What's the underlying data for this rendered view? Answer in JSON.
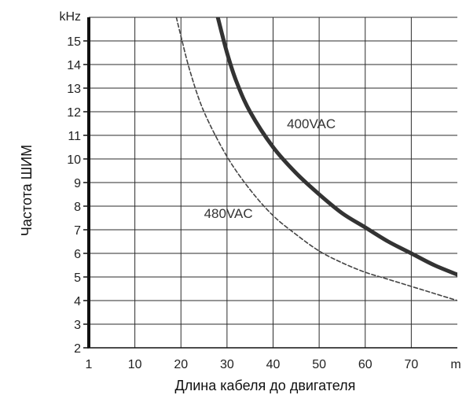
{
  "chart_data": {
    "type": "line",
    "title": "",
    "xlabel": "Длина кабеля до двигателя",
    "ylabel": "Частота ШИМ",
    "x_unit": "m",
    "y_unit": "kHz",
    "xlim": [
      1,
      80
    ],
    "ylim": [
      2,
      16
    ],
    "x_ticks": [
      1,
      10,
      20,
      30,
      40,
      50,
      60,
      70
    ],
    "y_ticks": [
      2,
      3,
      4,
      5,
      6,
      7,
      8,
      9,
      10,
      11,
      12,
      13,
      14,
      15
    ],
    "grid": true,
    "series": [
      {
        "name": "400VAC",
        "style": "solid",
        "color": "#333333",
        "x": [
          28,
          30,
          32,
          35,
          40,
          45,
          50,
          55,
          60,
          65,
          70,
          75,
          80
        ],
        "y": [
          16,
          14.5,
          13.3,
          12,
          10.5,
          9.4,
          8.5,
          7.7,
          7.1,
          6.5,
          6.0,
          5.5,
          5.1
        ]
      },
      {
        "name": "480VAC",
        "style": "dashed",
        "color": "#444444",
        "x": [
          19,
          20,
          22,
          25,
          30,
          35,
          40,
          45,
          50,
          55,
          60,
          65,
          70,
          75,
          80
        ],
        "y": [
          16,
          15.2,
          13.7,
          12.0,
          10.1,
          8.7,
          7.6,
          6.8,
          6.1,
          5.6,
          5.2,
          4.9,
          4.6,
          4.3,
          4.0
        ]
      }
    ]
  }
}
